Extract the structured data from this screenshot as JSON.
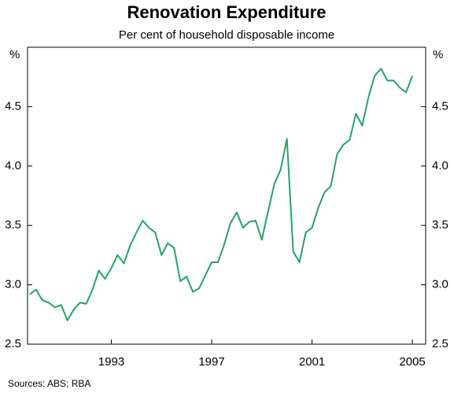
{
  "chart_data": {
    "type": "line",
    "title": "Renovation Expenditure",
    "subtitle": "Per cent of household disposable income",
    "y_unit": "%",
    "source": "Sources: ABS; RBA",
    "x": [
      1989.75,
      1990,
      1990.25,
      1990.5,
      1990.75,
      1991,
      1991.25,
      1991.5,
      1991.75,
      1992,
      1992.25,
      1992.5,
      1992.75,
      1993,
      1993.25,
      1993.5,
      1993.75,
      1994,
      1994.25,
      1994.5,
      1994.75,
      1995,
      1995.25,
      1995.5,
      1995.75,
      1996,
      1996.25,
      1996.5,
      1996.75,
      1997,
      1997.25,
      1997.5,
      1997.75,
      1998,
      1998.25,
      1998.5,
      1998.75,
      1999,
      1999.25,
      1999.5,
      1999.75,
      2000,
      2000.25,
      2000.5,
      2000.75,
      2001,
      2001.25,
      2001.5,
      2001.75,
      2002,
      2002.25,
      2002.5,
      2002.75,
      2003,
      2003.25,
      2003.5,
      2003.75,
      2004,
      2004.25,
      2004.5,
      2004.75,
      2005
    ],
    "series": [
      {
        "name": "Renovation expenditure",
        "color": "#22a467",
        "values": [
          2.92,
          2.96,
          2.87,
          2.85,
          2.81,
          2.83,
          2.7,
          2.79,
          2.85,
          2.84,
          2.96,
          3.12,
          3.05,
          3.14,
          3.25,
          3.18,
          3.33,
          3.44,
          3.54,
          3.48,
          3.44,
          3.25,
          3.35,
          3.31,
          3.03,
          3.07,
          2.94,
          2.97,
          3.08,
          3.19,
          3.19,
          3.34,
          3.52,
          3.61,
          3.48,
          3.53,
          3.54,
          3.38,
          3.62,
          3.85,
          3.97,
          4.23,
          3.28,
          3.19,
          3.44,
          3.48,
          3.65,
          3.78,
          3.83,
          4.1,
          4.18,
          4.22,
          4.44,
          4.34,
          4.58,
          4.76,
          4.82,
          4.72,
          4.72,
          4.66,
          4.62,
          4.76
        ]
      }
    ],
    "xlim": [
      1989.66,
      2005.53
    ],
    "xticks": [
      1993,
      1997,
      2001,
      2005
    ],
    "ylim": [
      2.5,
      5.0
    ],
    "yticks": [
      2.5,
      {
        "value": 3.0,
        "label": "3.0"
      },
      3.5,
      {
        "value": 4.0,
        "label": "4.0"
      },
      4.5
    ],
    "grid": false
  }
}
